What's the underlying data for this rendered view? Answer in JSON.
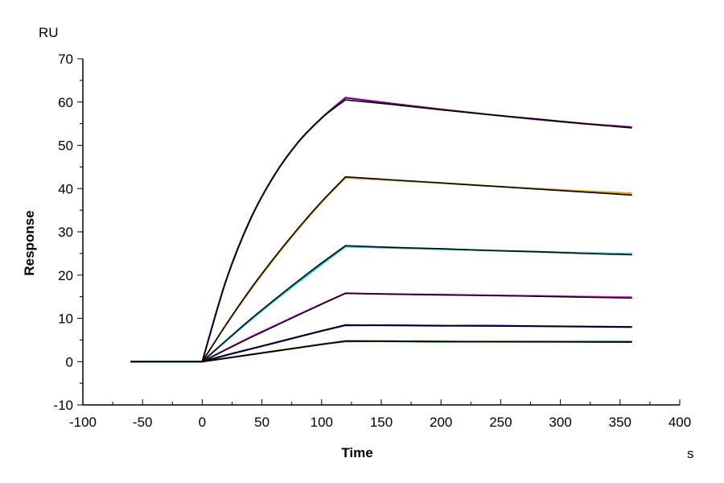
{
  "chart_data": {
    "type": "line",
    "title": "",
    "xlabel": "Time",
    "ylabel": "Response",
    "x_unit": "s",
    "y_unit": "RU",
    "xlim": [
      -100,
      400
    ],
    "ylim": [
      -10,
      70
    ],
    "x_ticks": [
      -100,
      -50,
      0,
      50,
      100,
      150,
      200,
      250,
      300,
      350,
      400
    ],
    "y_ticks": [
      -10,
      0,
      10,
      20,
      30,
      40,
      50,
      60,
      70
    ],
    "grid": false,
    "legend": "none",
    "fit_color": "#000000",
    "x": [
      -60,
      0,
      20,
      40,
      60,
      80,
      100,
      120,
      160,
      200,
      240,
      280,
      320,
      360
    ],
    "series": [
      {
        "color": "#800080",
        "values": [
          0,
          0,
          18.8,
          32.7,
          42.9,
          50.6,
          56.3,
          61.0,
          59.6,
          58.3,
          57.1,
          56.0,
          55.0,
          54.2
        ],
        "fit": [
          0,
          0,
          18.8,
          32.7,
          42.9,
          50.6,
          56.3,
          60.5,
          59.4,
          58.2,
          57.1,
          56.1,
          55.0,
          54.0
        ]
      },
      {
        "color": "#DAA520",
        "values": [
          0,
          0,
          8.5,
          16.4,
          23.7,
          30.5,
          36.8,
          42.5,
          41.9,
          41.3,
          40.6,
          40.0,
          39.4,
          38.9
        ],
        "fit": [
          0,
          0,
          8.6,
          16.6,
          23.9,
          30.7,
          37.0,
          42.7,
          42.0,
          41.3,
          40.6,
          39.9,
          39.2,
          38.5
        ]
      },
      {
        "color": "#00CED1",
        "values": [
          0,
          0,
          4.8,
          9.5,
          14.0,
          18.3,
          22.5,
          26.6,
          26.3,
          26.0,
          25.7,
          25.4,
          25.1,
          24.9
        ],
        "fit": [
          0,
          0,
          4.9,
          9.7,
          14.2,
          18.6,
          22.8,
          26.8,
          26.4,
          26.1,
          25.7,
          25.4,
          25.0,
          24.7
        ]
      },
      {
        "color": "#FF00FF",
        "values": [
          0,
          0,
          2.8,
          5.6,
          8.2,
          10.8,
          13.3,
          15.8,
          15.6,
          15.5,
          15.3,
          15.2,
          15.0,
          14.9
        ],
        "fit": [
          0,
          0,
          2.8,
          5.5,
          8.1,
          10.7,
          13.3,
          15.8,
          15.6,
          15.4,
          15.3,
          15.1,
          14.9,
          14.7
        ]
      },
      {
        "color": "#0000CD",
        "values": [
          0,
          0,
          1.5,
          2.9,
          4.3,
          5.7,
          7.1,
          8.4,
          8.4,
          8.3,
          8.3,
          8.2,
          8.1,
          8.0
        ],
        "fit": [
          0,
          0,
          1.5,
          2.9,
          4.3,
          5.7,
          7.1,
          8.5,
          8.4,
          8.3,
          8.25,
          8.2,
          8.1,
          8.0
        ]
      },
      {
        "color": "#006400",
        "values": [
          0,
          0,
          0.8,
          1.6,
          2.4,
          3.2,
          4.0,
          4.7,
          4.7,
          4.6,
          4.6,
          4.6,
          4.6,
          4.6
        ],
        "fit": [
          0,
          0,
          0.8,
          1.6,
          2.4,
          3.2,
          4.0,
          4.8,
          4.75,
          4.7,
          4.65,
          4.6,
          4.55,
          4.5
        ]
      }
    ]
  }
}
